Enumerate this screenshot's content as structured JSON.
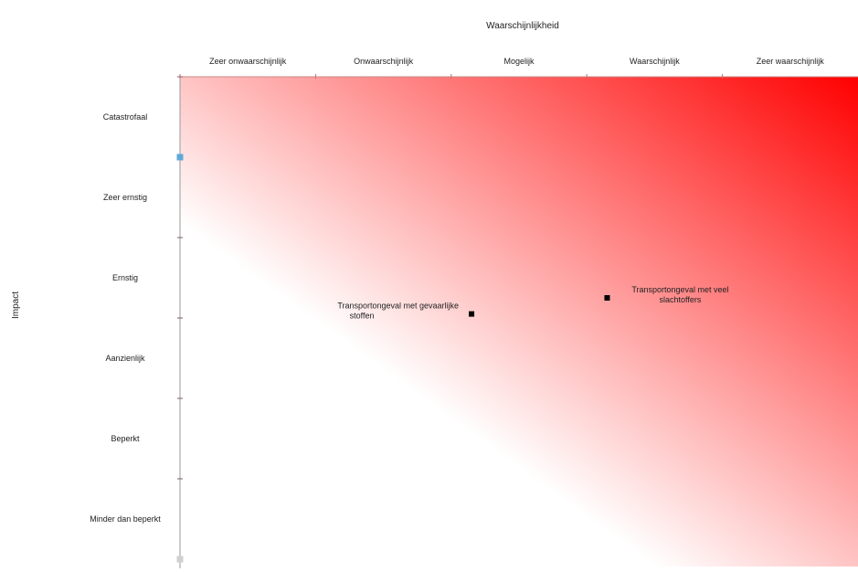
{
  "chart_data": {
    "type": "scatter",
    "title": "",
    "xlabel": "Waarschijnlijkheid",
    "ylabel": "Impact",
    "x_categories": [
      "Zeer onwaarschijnlijk",
      "Onwaarschijnlijk",
      "Mogelijk",
      "Waarschijnlijk",
      "Zeer waarschijnlijk"
    ],
    "y_categories": [
      "Catastrofaal",
      "Zeer ernstig",
      "Ernstig",
      "Aanzienlijk",
      "Beperkt",
      "Minder dan beperkt"
    ],
    "xlim": [
      0,
      5
    ],
    "ylim": [
      0,
      6
    ],
    "gradient": {
      "from": "#ffffff",
      "to": "#ff0000",
      "direction": "bottom-left to top-right"
    },
    "points": [
      {
        "label_lines": [
          "Transportongeval met gevaarlijke",
          "stoffen"
        ],
        "x": 2.15,
        "y": 3.05,
        "color": "#000000"
      },
      {
        "label_lines": [
          "Transportongeval met veel",
          "slachtoffers"
        ],
        "x": 3.15,
        "y": 3.25,
        "color": "#000000"
      }
    ],
    "axis_markers": [
      {
        "y": 5.0,
        "color": "#5fa8d8"
      },
      {
        "y": 0.0,
        "color": "#cfcfcf"
      }
    ],
    "grid": false,
    "legend": "none"
  }
}
